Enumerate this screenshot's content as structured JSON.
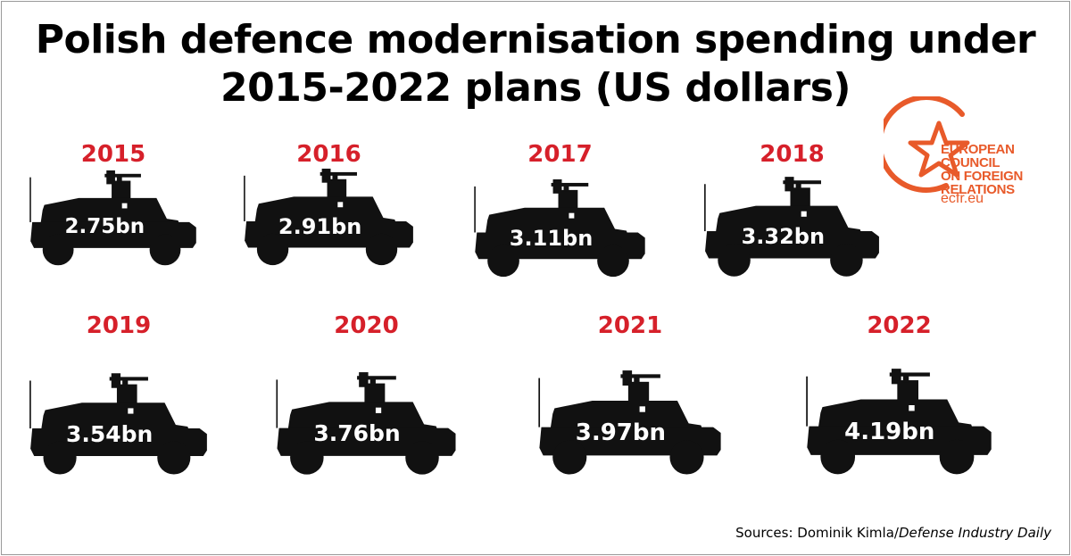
{
  "title_lines": [
    "Polish defence modernisation spending under",
    "2015-2022 plans (US dollars)"
  ],
  "logo": {
    "lines": [
      "EUROPEAN",
      "COUNCIL",
      "ON FOREIGN",
      "RELATIONS"
    ],
    "url": "ecfr.eu",
    "color": "#e85a2a"
  },
  "source": {
    "prefix": "Sources: Dominik Kimla/",
    "publication": "Defense Industry Daily"
  },
  "colors": {
    "year": "#d6202a",
    "vehicle": "#111111",
    "value_text": "#ffffff"
  },
  "chart_data": {
    "type": "bar",
    "title": "Polish defence modernisation spending under 2015-2022 plans (US dollars)",
    "categories": [
      "2015",
      "2016",
      "2017",
      "2018",
      "2019",
      "2020",
      "2021",
      "2022"
    ],
    "values": [
      2.75,
      2.91,
      3.11,
      3.32,
      3.54,
      3.76,
      3.97,
      4.19
    ],
    "value_labels": [
      "2.75bn",
      "2.91bn",
      "3.11bn",
      "3.32bn",
      "3.54bn",
      "3.76bn",
      "3.97bn",
      "4.19bn"
    ],
    "unit": "bn",
    "mark": "vehicle silhouette scaled by value"
  }
}
